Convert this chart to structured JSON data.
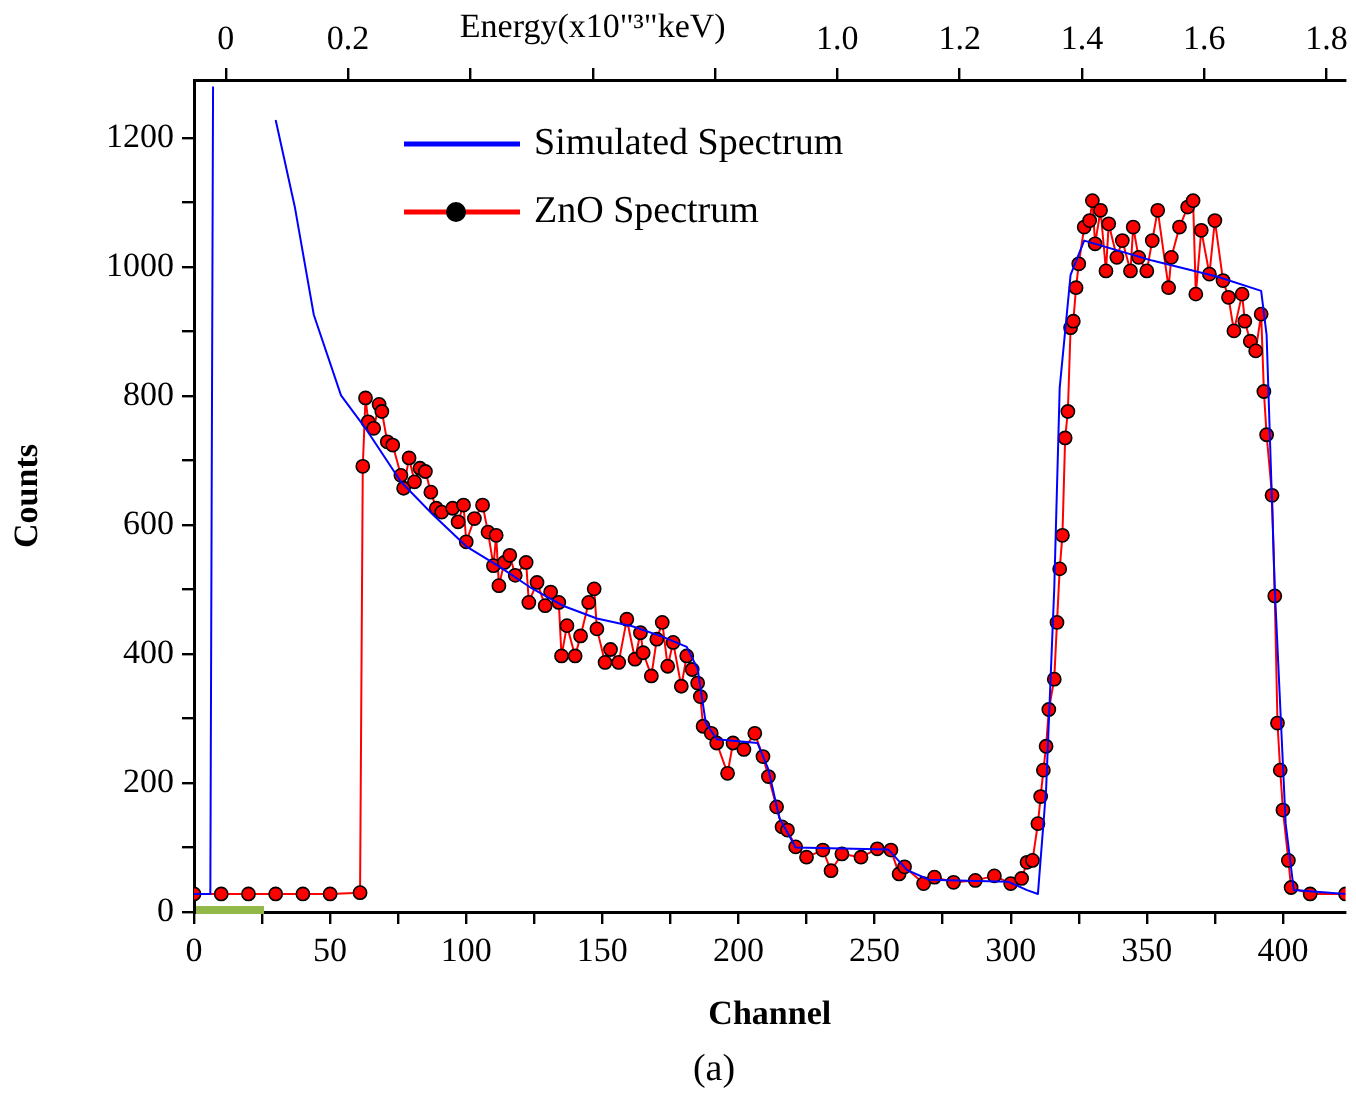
{
  "chart_data": {
    "type": "line",
    "xlabel": "Channel",
    "ylabel": "Counts",
    "x2label": "Energy(x10\"³\"keV)",
    "annotations": [
      "(a)"
    ],
    "xlim": [
      0,
      423
    ],
    "xticks": [
      0,
      {
        "value": 25,
        "label": null
      },
      50,
      {
        "value": 75,
        "label": null
      },
      100,
      {
        "value": 125,
        "label": null
      },
      150,
      {
        "value": 175,
        "label": null
      },
      200,
      {
        "value": 225,
        "label": null
      },
      250,
      {
        "value": 275,
        "label": null
      },
      300,
      {
        "value": 325,
        "label": null
      },
      350,
      {
        "value": 375,
        "label": null
      },
      400
    ],
    "x2lim": [
      -0.052,
      1.831
    ],
    "x2ticks": [
      0,
      0.2,
      {
        "value": 0.4,
        "label": null
      },
      {
        "value": 0.6,
        "label": null
      },
      {
        "value": 0.8,
        "label": null
      },
      {
        "value": 1.0,
        "label": "1.0"
      },
      1.2,
      1.4,
      1.6,
      1.8
    ],
    "ylim": [
      0,
      1290
    ],
    "yticks": [
      0,
      {
        "value": 100,
        "label": null
      },
      200,
      {
        "value": 300,
        "label": null
      },
      400,
      {
        "value": 500,
        "label": null
      },
      600,
      {
        "value": 700,
        "label": null
      },
      800,
      {
        "value": 900,
        "label": null
      },
      1000,
      {
        "value": 1100,
        "label": null
      },
      1200
    ],
    "grid": false,
    "legend": "top left",
    "series": [
      {
        "name": "Simulated Spectrum",
        "color": "#0000ff",
        "marker": "none",
        "x": [
          0,
          5,
          6,
          7,
          17,
          30,
          37,
          44,
          54,
          63,
          76,
          88,
          100,
          112,
          124,
          136,
          148,
          161,
          172,
          181,
          185,
          188,
          192,
          207,
          211,
          215,
          221,
          255,
          262,
          270,
          299,
          306,
          310,
          313,
          316,
          318,
          322,
          327,
          352,
          376,
          392,
          394,
          397,
          401,
          404,
          423
        ],
        "values": [
          28,
          28,
          28,
          1280,
          null,
          1228,
          1094,
          926,
          801,
          750,
          667,
          615,
          567,
          536,
          502,
          474,
          455,
          443,
          427,
          411,
          377,
          293,
          268,
          262,
          221,
          146,
          100,
          97,
          65,
          50,
          47,
          34,
          28,
          190,
          502,
          813,
          988,
          1041,
          1010,
          985,
          963,
          895,
          502,
          137,
          34,
          28
        ]
      },
      {
        "name": "ZnO Spectrum",
        "color": "#ff0000",
        "marker": "circle",
        "x": [
          0,
          10,
          20,
          30,
          40,
          50,
          61,
          62,
          63,
          64,
          66,
          68,
          69,
          71,
          73,
          76,
          77,
          79,
          81,
          83,
          85,
          87,
          89,
          91,
          95,
          97,
          99,
          100,
          103,
          106,
          108,
          110,
          111,
          112,
          114,
          116,
          118,
          122,
          123,
          126,
          129,
          131,
          134,
          135,
          137,
          140,
          142,
          145,
          147,
          148,
          151,
          153,
          156,
          159,
          162,
          164,
          165,
          168,
          170,
          172,
          174,
          176,
          179,
          181,
          183,
          185,
          186,
          187,
          190,
          192,
          196,
          198,
          202,
          206,
          209,
          211,
          214,
          216,
          218,
          221,
          225,
          231,
          234,
          238,
          245,
          251,
          256,
          259,
          261,
          268,
          272,
          279,
          287,
          294,
          300,
          304,
          306,
          308,
          310,
          311,
          312,
          313,
          314,
          316,
          317,
          318,
          319,
          320,
          321,
          322,
          323,
          324,
          325,
          327,
          329,
          330,
          331,
          333,
          335,
          336,
          339,
          341,
          344,
          345,
          347,
          350,
          352,
          354,
          358,
          359,
          362,
          365,
          367,
          368,
          370,
          373,
          375,
          378,
          380,
          382,
          385,
          386,
          388,
          390,
          392,
          393,
          394,
          396,
          397,
          398,
          399,
          400,
          402,
          403,
          410,
          423
        ],
        "values": [
          28,
          28,
          28,
          28,
          28,
          28,
          30,
          691,
          797,
          760,
          750,
          787,
          776,
          729,
          724,
          677,
          657,
          704,
          667,
          688,
          683,
          651,
          626,
          620,
          626,
          605,
          631,
          574,
          610,
          631,
          589,
          537,
          584,
          506,
          542,
          553,
          522,
          542,
          480,
          511,
          475,
          496,
          480,
          397,
          444,
          397,
          428,
          480,
          501,
          439,
          387,
          407,
          387,
          454,
          392,
          433,
          402,
          366,
          423,
          449,
          381,
          418,
          350,
          397,
          376,
          355,
          334,
          288,
          277,
          262,
          215,
          262,
          252,
          277,
          241,
          210,
          163,
          132,
          127,
          101,
          85,
          96,
          64,
          90,
          85,
          98,
          96,
          59,
          70,
          44,
          54,
          46,
          49,
          56,
          44,
          52,
          77,
          80,
          137,
          179,
          220,
          257,
          314,
          361,
          449,
          532,
          584,
          735,
          776,
          906,
          916,
          968,
          1005,
          1062,
          1072,
          1103,
          1036,
          1088,
          994,
          1067,
          1015,
          1041,
          994,
          1062,
          1015,
          994,
          1041,
          1088,
          968,
          1015,
          1062,
          1093,
          1103,
          958,
          1057,
          989,
          1072,
          979,
          953,
          901,
          958,
          916,
          885,
          870,
          927,
          807,
          740,
          646,
          490,
          293,
          220,
          158,
          80,
          38,
          28,
          28
        ]
      }
    ]
  }
}
